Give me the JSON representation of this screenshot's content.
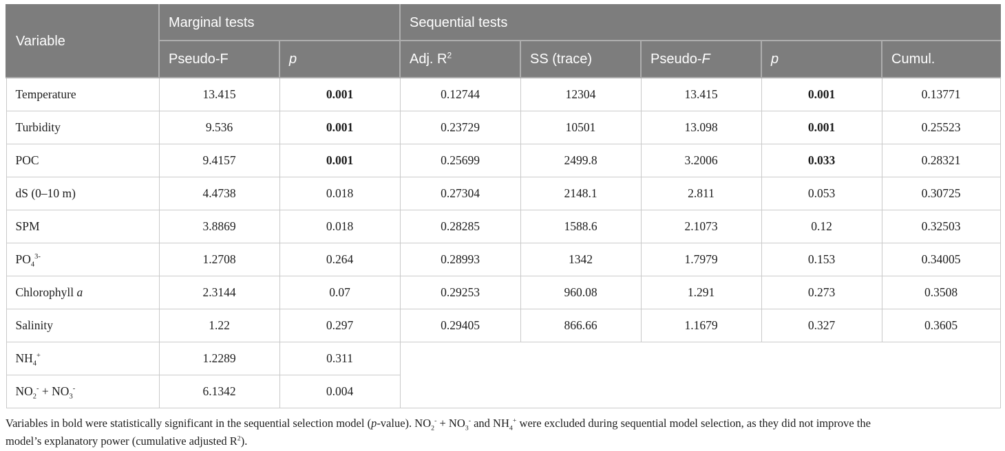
{
  "colors": {
    "header_background": "#7d7d7d",
    "header_text": "#ffffff",
    "header_separator": "#aeaeae",
    "body_border": "#c9c9c9",
    "body_text": "#1c1c1c"
  },
  "table": {
    "header": {
      "variable": "Variable",
      "marginal": {
        "title": "Marginal tests",
        "cols": [
          "Pseudo-F",
          "<i>p</i>"
        ]
      },
      "sequential": {
        "title": "Sequential tests",
        "cols": [
          "Adj. R<sup>2</sup>",
          "SS (trace)",
          "Pseudo-<i>F</i>",
          "<i>p</i>",
          "Cumul."
        ]
      }
    },
    "rows": [
      {
        "cells": [
          "Temperature",
          "13.415",
          "<b>0.001</b>",
          "0.12744",
          "12304",
          "13.415",
          "<b>0.001</b>",
          "0.13771"
        ]
      },
      {
        "cells": [
          "Turbidity",
          "9.536",
          "<b>0.001</b>",
          "0.23729",
          "10501",
          "13.098",
          "<b>0.001</b>",
          "0.25523"
        ]
      },
      {
        "cells": [
          "POC",
          "9.4157",
          "<b>0.001</b>",
          "0.25699",
          "2499.8",
          "3.2006",
          "<b>0.033</b>",
          "0.28321"
        ]
      },
      {
        "cells": [
          "dS (0–10 m)",
          "4.4738",
          "0.018",
          "0.27304",
          "2148.1",
          "2.811",
          "0.053",
          "0.30725"
        ]
      },
      {
        "cells": [
          "SPM",
          "3.8869",
          "0.018",
          "0.28285",
          "1588.6",
          "2.1073",
          "0.12",
          "0.32503"
        ]
      },
      {
        "cells": [
          "PO<sub>4</sub><sup>3-</sup>",
          "1.2708",
          "0.264",
          "0.28993",
          "1342",
          "1.7979",
          "0.153",
          "0.34005"
        ]
      },
      {
        "cells": [
          "Chlorophyll <i>a</i>",
          "2.3144",
          "0.07",
          "0.29253",
          "960.08",
          "1.291",
          "0.273",
          "0.3508"
        ]
      },
      {
        "cells": [
          "Salinity",
          "1.22",
          "0.297",
          "0.29405",
          "866.66",
          "1.1679",
          "0.327",
          "0.3605"
        ]
      },
      {
        "cells": [
          "NH<sub>4</sub><sup>+</sup>",
          "1.2289",
          "0.311"
        ]
      },
      {
        "cells": [
          "NO<sub>2</sub><sup>-</sup> + NO<sub>3</sub><sup>-</sup>",
          "6.1342",
          "0.004"
        ]
      }
    ]
  },
  "footnote_html": "Variables in bold were statistically significant in the sequential selection model (<i>p</i>-value). NO<sub>2</sub><sup>-</sup> + NO<sub>3</sub><sup>-</sup> and NH<sub>4</sub><sup>+</sup> were excluded during sequential model selection, as they did not improve the<br>model’s explanatory power (cumulative adjusted R<sup>2</sup>)."
}
